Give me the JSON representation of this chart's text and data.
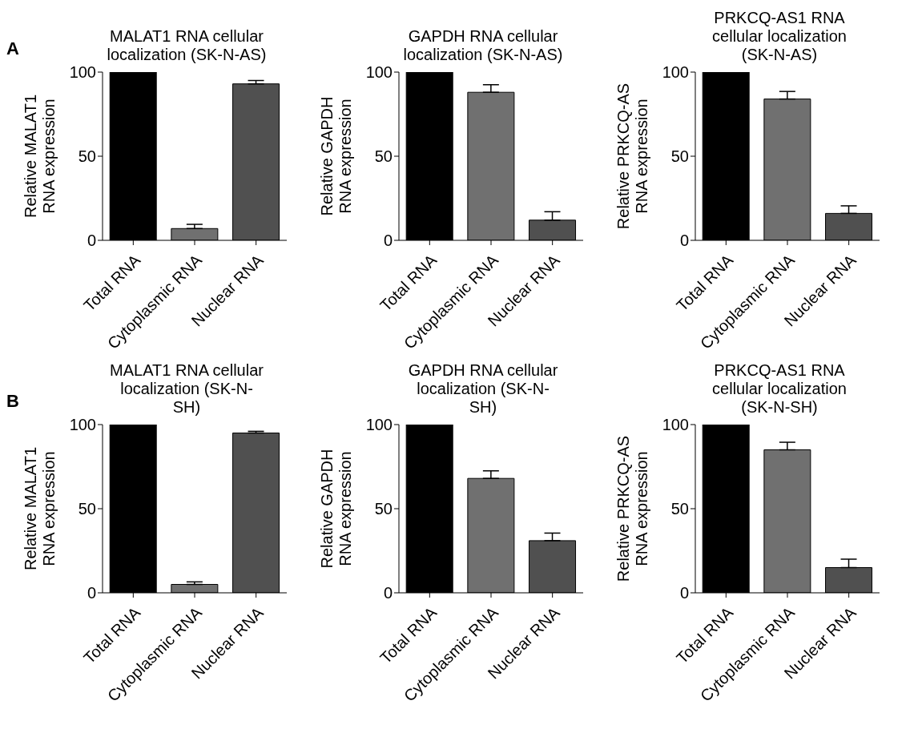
{
  "chart_data": [
    {
      "type": "bar",
      "title": "MALAT1 RNA cellular localization (SK-N-AS)",
      "ylabel": "Relative MALAT1 RNA expression",
      "annotations": [
        "A"
      ],
      "categories": [
        "Total RNA",
        "Cytoplasmic RNA",
        "Nuclear RNA"
      ],
      "values": [
        100,
        7,
        93
      ],
      "errors": [
        null,
        [
          7,
          9.5
        ],
        [
          93,
          95
        ]
      ],
      "colors": [
        "#000000",
        "#707070",
        "#505050"
      ],
      "ylim": [
        0,
        100
      ],
      "yticks": [
        0,
        50,
        100
      ]
    },
    {
      "type": "bar",
      "title": "GAPDH RNA cellular localization (SK-N-AS)",
      "ylabel": "Relative GAPDH RNA expression",
      "categories": [
        "Total RNA",
        "Cytoplasmic RNA",
        "Nuclear RNA"
      ],
      "values": [
        100,
        88,
        12
      ],
      "errors": [
        null,
        [
          88,
          92.5
        ],
        [
          12,
          17
        ]
      ],
      "colors": [
        "#000000",
        "#707070",
        "#505050"
      ],
      "ylim": [
        0,
        100
      ],
      "yticks": [
        0,
        50,
        100
      ]
    },
    {
      "type": "bar",
      "title": "PRKCQ-AS1 RNA cellular localization (SK-N-AS)",
      "ylabel": "Relative PRKCQ-AS RNA expression",
      "categories": [
        "Total RNA",
        "Cytoplasmic RNA",
        "Nuclear RNA"
      ],
      "values": [
        100,
        84,
        16
      ],
      "errors": [
        null,
        [
          84,
          88.5
        ],
        [
          16,
          20.5
        ]
      ],
      "colors": [
        "#000000",
        "#707070",
        "#505050"
      ],
      "ylim": [
        0,
        100
      ],
      "yticks": [
        0,
        50,
        100
      ]
    },
    {
      "type": "bar",
      "title": "MALAT1 RNA cellular localization (SK-N-SH)",
      "ylabel": "Relative MALAT1 RNA expression",
      "annotations": [
        "B"
      ],
      "categories": [
        "Total RNA",
        "Cytoplasmic RNA",
        "Nuclear RNA"
      ],
      "values": [
        100,
        5,
        95
      ],
      "errors": [
        null,
        [
          5,
          6.5
        ],
        [
          95,
          96
        ]
      ],
      "colors": [
        "#000000",
        "#707070",
        "#505050"
      ],
      "ylim": [
        0,
        100
      ],
      "yticks": [
        0,
        50,
        100
      ]
    },
    {
      "type": "bar",
      "title": "GAPDH RNA cellular localization (SK-N-SH)",
      "ylabel": "Relative GAPDH RNA expression",
      "categories": [
        "Total RNA",
        "Cytoplasmic RNA",
        "Nuclear RNA"
      ],
      "values": [
        100,
        68,
        31
      ],
      "errors": [
        null,
        [
          68,
          72.5
        ],
        [
          31,
          35.5
        ]
      ],
      "colors": [
        "#000000",
        "#707070",
        "#505050"
      ],
      "ylim": [
        0,
        100
      ],
      "yticks": [
        0,
        50,
        100
      ]
    },
    {
      "type": "bar",
      "title": "PRKCQ-AS1 RNA cellular localization (SK-N-SH)",
      "ylabel": "Relative PRKCQ-AS RNA expression",
      "categories": [
        "Total RNA",
        "Cytoplasmic RNA",
        "Nuclear RNA"
      ],
      "values": [
        100,
        85,
        15
      ],
      "errors": [
        null,
        [
          85,
          89.5
        ],
        [
          15,
          20
        ]
      ],
      "colors": [
        "#000000",
        "#707070",
        "#505050"
      ],
      "ylim": [
        0,
        100
      ],
      "yticks": [
        0,
        50,
        100
      ]
    }
  ]
}
